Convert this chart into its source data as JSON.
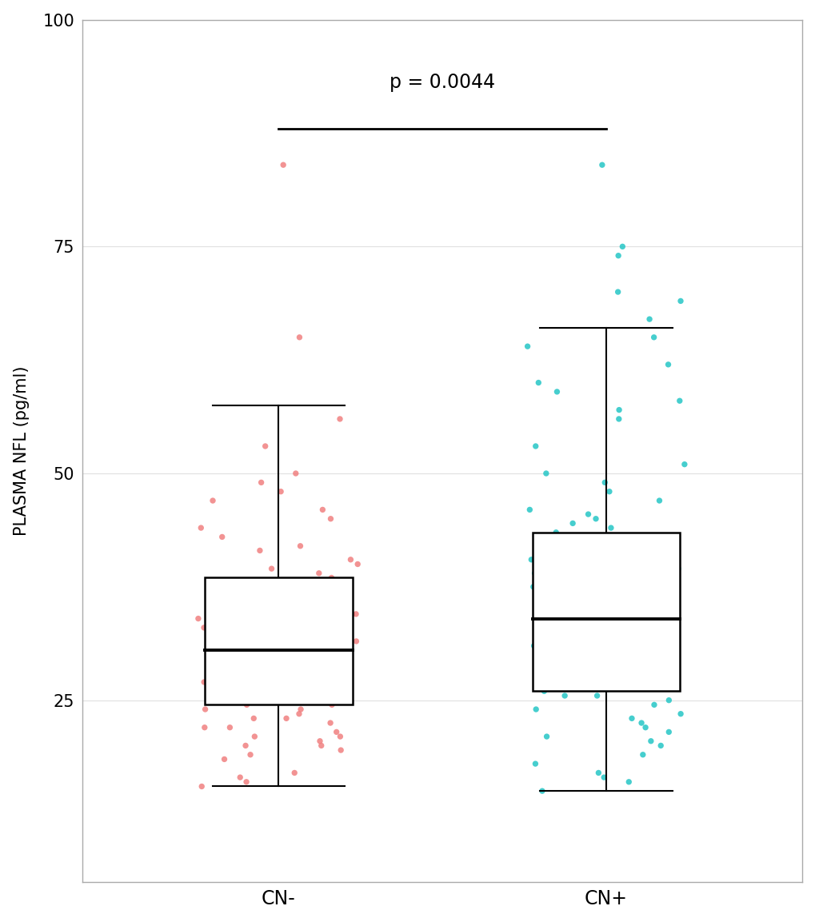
{
  "groups": [
    "CN-",
    "CN+"
  ],
  "cn_minus": {
    "color": "#F08080",
    "median": 30.5,
    "q1": 24.5,
    "q3": 38.5,
    "whisker_low": 15.5,
    "whisker_high": 57.5,
    "outliers_above": [
      84.0,
      65.0
    ],
    "jitter_points": [
      46.0,
      44.0,
      42.0,
      39.0,
      38.0,
      37.5,
      37.0,
      36.5,
      36.0,
      35.5,
      35.0,
      34.5,
      34.0,
      33.5,
      33.0,
      33.0,
      32.5,
      32.0,
      31.5,
      31.5,
      31.0,
      30.5,
      30.0,
      30.0,
      29.5,
      29.0,
      29.0,
      28.5,
      28.0,
      28.0,
      27.5,
      27.0,
      27.0,
      26.5,
      26.0,
      25.5,
      25.0,
      24.5,
      24.0,
      23.5,
      23.0,
      22.5,
      22.0,
      21.5,
      21.0,
      20.5,
      20.0,
      19.5,
      19.0,
      18.5,
      49.0,
      47.0,
      45.0,
      43.0,
      41.5,
      40.5,
      40.0,
      39.5,
      38.5,
      38.0,
      37.0,
      36.0,
      35.0,
      34.0,
      33.0,
      32.0,
      31.0,
      30.0,
      29.0,
      28.0,
      27.0,
      26.0,
      25.0,
      24.0,
      23.0,
      22.0,
      21.0,
      20.0,
      56.0,
      53.0,
      50.0,
      48.0,
      17.0,
      16.5,
      16.0,
      15.5,
      24.5,
      25.5,
      26.5,
      27.5,
      28.5,
      29.5,
      30.5,
      31.5,
      32.5,
      33.5,
      34.5,
      35.5,
      36.5,
      37.5
    ]
  },
  "cn_plus": {
    "color": "#26C6C6",
    "median": 34.0,
    "q1": 26.0,
    "q3": 43.5,
    "whisker_low": 15.0,
    "whisker_high": 66.0,
    "outliers_above": [
      84.0,
      75.0,
      74.0
    ],
    "jitter_points": [
      44.5,
      44.0,
      43.5,
      43.0,
      42.5,
      42.0,
      41.5,
      41.0,
      40.5,
      40.0,
      39.5,
      39.0,
      38.5,
      38.0,
      37.5,
      37.0,
      36.5,
      36.0,
      35.5,
      35.0,
      34.5,
      34.0,
      33.5,
      33.0,
      32.5,
      32.0,
      31.5,
      31.0,
      30.5,
      30.0,
      29.5,
      29.0,
      28.5,
      28.0,
      27.5,
      27.0,
      26.5,
      26.0,
      25.5,
      25.0,
      24.5,
      24.0,
      23.5,
      23.0,
      22.5,
      22.0,
      21.5,
      21.0,
      20.5,
      20.0,
      47.0,
      46.0,
      45.5,
      45.0,
      48.0,
      49.0,
      50.0,
      51.0,
      53.0,
      56.0,
      57.0,
      58.0,
      59.0,
      60.0,
      62.0,
      64.0,
      65.0,
      67.0,
      38.5,
      37.5,
      36.5,
      35.5,
      34.5,
      33.5,
      32.5,
      31.5,
      30.5,
      29.5,
      28.5,
      27.5,
      26.5,
      25.5,
      19.0,
      18.0,
      17.0,
      16.5,
      16.0,
      15.0,
      70.0,
      69.0
    ]
  },
  "ylabel": "PLASMA NFL (pg/ml)",
  "xlabels": [
    "CN-",
    "CN+"
  ],
  "ylim": [
    5,
    100
  ],
  "yticks": [
    25,
    50,
    75,
    100
  ],
  "pvalue_text": "p = 0.0044",
  "pvalue_y": 92,
  "pvalue_line_y": 88,
  "sig_x1": 1.0,
  "sig_x2": 2.0,
  "background_color": "#ffffff",
  "grid_color": "#e0e0e0",
  "box_width": 0.45,
  "positions": [
    1,
    2
  ],
  "xlim": [
    0.4,
    2.6
  ]
}
